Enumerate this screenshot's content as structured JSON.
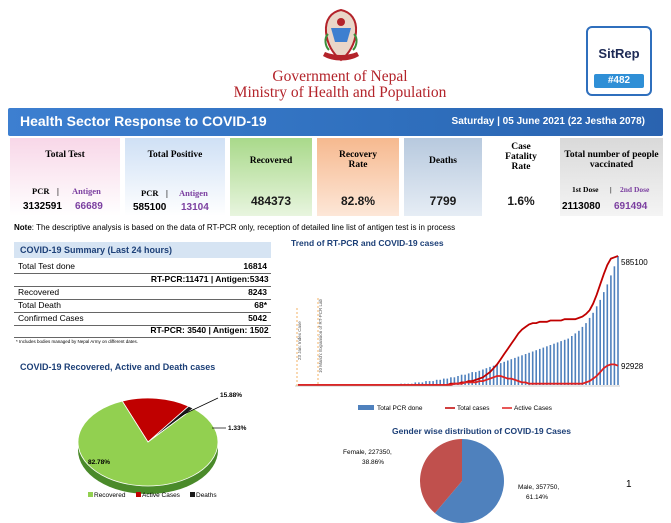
{
  "header": {
    "gov_line1": "Government of Nepal",
    "gov_line2": "Ministry of Health and Population",
    "sitrep_label": "SitRep",
    "sitrep_number": "#482",
    "banner_title": "Health Sector Response to COVID-19",
    "banner_date": "Saturday | 05 June 2021 (22 Jestha 2078)"
  },
  "cards": {
    "total_test": {
      "label": "Total Test",
      "pcr_label": "PCR",
      "sep": "|",
      "antigen_label": "Antigen",
      "pcr": "3132591",
      "antigen": "66689"
    },
    "total_positive": {
      "label": "Total Positive",
      "pcr_label": "PCR",
      "sep": "|",
      "antigen_label": "Antigen",
      "pcr": "585100",
      "antigen": "13104"
    },
    "recovered": {
      "label": "Recovered",
      "value": "484373"
    },
    "recovery_rate": {
      "label": "Recovery Rate",
      "value": "82.8%"
    },
    "deaths": {
      "label": "Deaths",
      "value": "7799"
    },
    "cfr": {
      "label": "Case Fatality Rate",
      "value": "1.6%"
    },
    "vaccinated": {
      "label": "Total number of people vaccinated",
      "dose1_label": "1st Dose",
      "sep": "|",
      "dose2_label": "2nd Dose",
      "dose1": "2113080",
      "dose2": "691494"
    }
  },
  "note": {
    "bold": "Note",
    "text": ": The descriptive analysis is based on the data of RT-PCR only, reception of detailed line list of antigen test is in process"
  },
  "summary": {
    "title": "COVID-19 Summary (Last 24 hours)",
    "rows": [
      {
        "label": "Total Test done",
        "value": "16814"
      },
      {
        "label": "",
        "value": "RT-PCR:11471 | Antigen:5343"
      },
      {
        "label": "Recovered",
        "value": "8243"
      },
      {
        "label": "Total Death",
        "value": "68*"
      },
      {
        "label": "Confirmed Cases",
        "value": "5042"
      },
      {
        "label": "",
        "value": "RT-PCR: 3540 | Antigen: 1502"
      }
    ],
    "footnote": "* Includes bodies managed by Nepal Army on different dates."
  },
  "pie1": {
    "title": "COVID-19 Recovered, Active and Death cases",
    "label_recovered": "82.78%",
    "label_active": "15.88%",
    "label_deaths": "1.33%",
    "legend": [
      "Recovered",
      "Active Cases",
      "Deaths"
    ],
    "colors": [
      "#92d050",
      "#c00000",
      "#1a1a1a"
    ]
  },
  "trend": {
    "title": "Trend of RT-PCR and COVID-19 cases",
    "annot1": "23 Jan: Index Case",
    "annot2": "10 March: Expansion of RT-PCR Lab",
    "label_total": "585100",
    "label_active": "92928",
    "legend": [
      "Total PCR done",
      "Total cases",
      "Active Cases"
    ],
    "colors": {
      "pcr": "#4f81bd",
      "total": "#c00000",
      "active": "#e02020"
    }
  },
  "gender": {
    "title": "Gender wise distribution of COVID-19 Cases",
    "female_label": "Female, 227350,",
    "female_pct": "38.86%",
    "male_label": "Male, 357750,",
    "male_pct": "61.14%",
    "colors": {
      "male": "#4f81bd",
      "female": "#c0504d"
    }
  },
  "chart_data": [
    {
      "type": "pie",
      "title": "COVID-19 Recovered, Active and Death cases",
      "categories": [
        "Recovered",
        "Active Cases",
        "Deaths"
      ],
      "values": [
        82.78,
        15.88,
        1.33
      ]
    },
    {
      "type": "pie",
      "title": "Gender wise distribution of COVID-19 Cases",
      "categories": [
        "Female",
        "Male"
      ],
      "values": [
        227350,
        357750
      ],
      "percent": [
        38.86,
        61.14
      ]
    },
    {
      "type": "line",
      "title": "Trend of RT-PCR and COVID-19 cases",
      "series": [
        {
          "name": "Total PCR done",
          "kind": "bar",
          "values": [
            0,
            0,
            0,
            0,
            0,
            0,
            0,
            0,
            0,
            0,
            0,
            0,
            0,
            0,
            0,
            0,
            0,
            0,
            0,
            0,
            0,
            0,
            0,
            0,
            0,
            0,
            0,
            0,
            0,
            1,
            1,
            1,
            1,
            2,
            2,
            2,
            3,
            3,
            3,
            4,
            4,
            5,
            5,
            6,
            6,
            7,
            8,
            8,
            9,
            10,
            10,
            11,
            12,
            13,
            14,
            15,
            16,
            17,
            18,
            19,
            20,
            21,
            22,
            23,
            24,
            25,
            26,
            27,
            28,
            29,
            30,
            31,
            32,
            33,
            34,
            35,
            36,
            38,
            40,
            42,
            45,
            48,
            52,
            56,
            61,
            66,
            72,
            78,
            85,
            92,
            100
          ]
        },
        {
          "name": "Total cases",
          "values": [
            0,
            0,
            0,
            0,
            0,
            0,
            0,
            0,
            0,
            0,
            0,
            0,
            0,
            0,
            0,
            0,
            0,
            0,
            0,
            0,
            0,
            0,
            0,
            0,
            0,
            0,
            0,
            0,
            0,
            0,
            0,
            0,
            0,
            0,
            0,
            0,
            0,
            0,
            0,
            0,
            0,
            0,
            0,
            1,
            1,
            1,
            2,
            2,
            3,
            3,
            4,
            5,
            6,
            8,
            10,
            13,
            16,
            20,
            24,
            28,
            32,
            36,
            40,
            43,
            45,
            47,
            48,
            48,
            49,
            49,
            49,
            50,
            50,
            50,
            50,
            51,
            51,
            51,
            51,
            52,
            53,
            55,
            58,
            63,
            70,
            78,
            86,
            93,
            98,
            99,
            100
          ]
        },
        {
          "name": "Active Cases",
          "values": [
            0,
            0,
            0,
            0,
            0,
            0,
            0,
            0,
            0,
            0,
            0,
            0,
            0,
            0,
            0,
            0,
            0,
            0,
            0,
            0,
            0,
            0,
            0,
            0,
            0,
            0,
            0,
            0,
            0,
            0,
            0,
            0,
            0,
            0,
            0,
            0,
            0,
            0,
            0,
            0,
            0,
            0,
            0,
            0,
            1,
            1,
            1,
            2,
            2,
            2,
            2,
            3,
            3,
            4,
            5,
            6,
            7,
            7,
            6,
            5,
            5,
            4,
            3,
            2,
            2,
            1,
            1,
            1,
            1,
            1,
            1,
            1,
            1,
            1,
            1,
            1,
            1,
            1,
            1,
            1,
            1,
            2,
            3,
            5,
            7,
            10,
            13,
            15,
            16,
            16,
            15
          ]
        }
      ]
    }
  ]
}
